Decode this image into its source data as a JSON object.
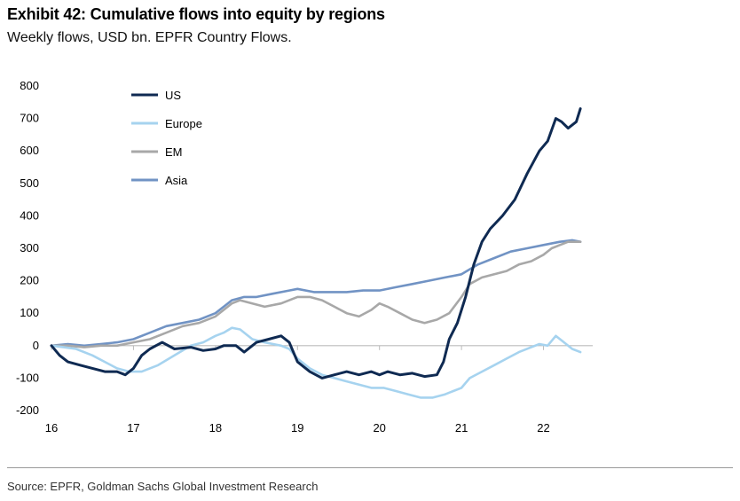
{
  "header": {
    "title": "Exhibit 42: Cumulative flows into equity by regions",
    "subtitle": "Weekly flows, USD bn. EPFR Country Flows."
  },
  "footer": {
    "source": "Source: EPFR, Goldman Sachs Global Investment Research"
  },
  "colors": {
    "US": "#0f2a52",
    "Europe": "#a6d3ef",
    "EM": "#a8a8a8",
    "Asia": "#7193c4",
    "axis": "#bbbbbb"
  },
  "chart_data": {
    "type": "line",
    "title": "Exhibit 42: Cumulative flows into equity by regions",
    "subtitle": "Weekly flows, USD bn. EPFR Country Flows.",
    "xlabel": "",
    "ylabel": "",
    "xlim": [
      2016,
      2022.6
    ],
    "ylim": [
      -200,
      800
    ],
    "y_ticks": [
      800,
      700,
      600,
      500,
      400,
      300,
      200,
      100,
      0,
      -100,
      -200
    ],
    "x_ticks": [
      {
        "value": 2016,
        "label": "16"
      },
      {
        "value": 2017,
        "label": "17"
      },
      {
        "value": 2018,
        "label": "18"
      },
      {
        "value": 2019,
        "label": "19"
      },
      {
        "value": 2020,
        "label": "20"
      },
      {
        "value": 2021,
        "label": "21"
      },
      {
        "value": 2022,
        "label": "22"
      }
    ],
    "grid": false,
    "legend_position": "top-left",
    "series": [
      {
        "name": "US",
        "x": [
          2016.0,
          2016.1,
          2016.2,
          2016.35,
          2016.5,
          2016.65,
          2016.8,
          2016.9,
          2017.0,
          2017.1,
          2017.2,
          2017.35,
          2017.5,
          2017.7,
          2017.85,
          2018.0,
          2018.1,
          2018.25,
          2018.35,
          2018.5,
          2018.65,
          2018.8,
          2018.9,
          2019.0,
          2019.15,
          2019.3,
          2019.45,
          2019.6,
          2019.75,
          2019.9,
          2020.0,
          2020.1,
          2020.25,
          2020.4,
          2020.55,
          2020.7,
          2020.78,
          2020.85,
          2020.95,
          2021.05,
          2021.15,
          2021.25,
          2021.35,
          2021.5,
          2021.65,
          2021.8,
          2021.95,
          2022.05,
          2022.15,
          2022.22,
          2022.3,
          2022.4,
          2022.45
        ],
        "values": [
          0,
          -30,
          -50,
          -60,
          -70,
          -80,
          -80,
          -90,
          -70,
          -30,
          -10,
          10,
          -10,
          -5,
          -15,
          -10,
          0,
          0,
          -20,
          10,
          20,
          30,
          10,
          -50,
          -80,
          -100,
          -90,
          -80,
          -90,
          -80,
          -90,
          -80,
          -90,
          -85,
          -95,
          -90,
          -50,
          20,
          70,
          150,
          250,
          320,
          360,
          400,
          450,
          530,
          600,
          630,
          700,
          690,
          670,
          690,
          730
        ]
      },
      {
        "name": "Europe",
        "x": [
          2016.0,
          2016.15,
          2016.3,
          2016.5,
          2016.65,
          2016.8,
          2016.95,
          2017.1,
          2017.3,
          2017.5,
          2017.7,
          2017.85,
          2018.0,
          2018.1,
          2018.2,
          2018.3,
          2018.45,
          2018.6,
          2018.8,
          2018.9,
          2019.0,
          2019.15,
          2019.3,
          2019.45,
          2019.6,
          2019.75,
          2019.9,
          2020.05,
          2020.2,
          2020.35,
          2020.5,
          2020.65,
          2020.8,
          2020.9,
          2021.0,
          2021.1,
          2021.25,
          2021.4,
          2021.55,
          2021.7,
          2021.85,
          2021.95,
          2022.05,
          2022.15,
          2022.25,
          2022.35,
          2022.45
        ],
        "values": [
          0,
          -5,
          -10,
          -30,
          -50,
          -70,
          -80,
          -80,
          -60,
          -30,
          0,
          10,
          30,
          40,
          55,
          50,
          20,
          10,
          0,
          -10,
          -40,
          -70,
          -90,
          -100,
          -110,
          -120,
          -130,
          -130,
          -140,
          -150,
          -160,
          -160,
          -150,
          -140,
          -130,
          -100,
          -80,
          -60,
          -40,
          -20,
          -5,
          5,
          0,
          30,
          10,
          -10,
          -20
        ]
      },
      {
        "name": "EM",
        "x": [
          2016.0,
          2016.2,
          2016.4,
          2016.6,
          2016.8,
          2017.0,
          2017.2,
          2017.4,
          2017.6,
          2017.8,
          2018.0,
          2018.1,
          2018.2,
          2018.3,
          2018.45,
          2018.6,
          2018.8,
          2018.9,
          2019.0,
          2019.15,
          2019.3,
          2019.45,
          2019.6,
          2019.75,
          2019.9,
          2020.0,
          2020.1,
          2020.25,
          2020.4,
          2020.55,
          2020.7,
          2020.85,
          2021.0,
          2021.1,
          2021.25,
          2021.4,
          2021.55,
          2021.7,
          2021.85,
          2022.0,
          2022.1,
          2022.2,
          2022.3,
          2022.4,
          2022.45
        ],
        "values": [
          0,
          0,
          -5,
          0,
          0,
          10,
          20,
          40,
          60,
          70,
          90,
          110,
          130,
          140,
          130,
          120,
          130,
          140,
          150,
          150,
          140,
          120,
          100,
          90,
          110,
          130,
          120,
          100,
          80,
          70,
          80,
          100,
          150,
          190,
          210,
          220,
          230,
          250,
          260,
          280,
          300,
          310,
          320,
          320,
          320
        ]
      },
      {
        "name": "Asia",
        "x": [
          2016.0,
          2016.2,
          2016.4,
          2016.6,
          2016.8,
          2017.0,
          2017.2,
          2017.4,
          2017.6,
          2017.8,
          2018.0,
          2018.1,
          2018.2,
          2018.35,
          2018.5,
          2018.7,
          2018.9,
          2019.0,
          2019.2,
          2019.4,
          2019.6,
          2019.8,
          2020.0,
          2020.2,
          2020.4,
          2020.6,
          2020.8,
          2021.0,
          2021.2,
          2021.4,
          2021.6,
          2021.8,
          2022.0,
          2022.2,
          2022.35,
          2022.45
        ],
        "values": [
          0,
          5,
          0,
          5,
          10,
          20,
          40,
          60,
          70,
          80,
          100,
          120,
          140,
          150,
          150,
          160,
          170,
          175,
          165,
          165,
          165,
          170,
          170,
          180,
          190,
          200,
          210,
          220,
          250,
          270,
          290,
          300,
          310,
          320,
          325,
          320
        ]
      }
    ]
  }
}
